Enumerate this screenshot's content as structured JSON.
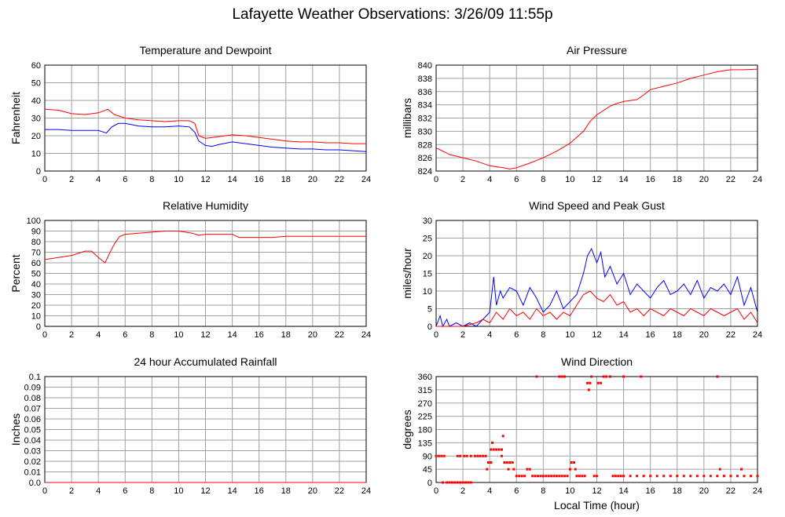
{
  "title": "Lafayette Weather Observations: 3/26/09 11:55p",
  "xlabel": "Local Time (hour)",
  "colors": {
    "red": "#ff0000",
    "blue": "#0000ff",
    "grid": "#a0a0a0"
  },
  "chart_data": [
    {
      "id": "temp",
      "type": "line",
      "title": "Temperature and Dewpoint",
      "xlabel": "",
      "ylabel": "Fahrenheit",
      "xlim": [
        0,
        24
      ],
      "ylim": [
        0,
        60
      ],
      "xticks": [
        0,
        2,
        4,
        6,
        8,
        10,
        12,
        14,
        16,
        18,
        20,
        22,
        24
      ],
      "yticks": [
        0,
        10,
        20,
        30,
        40,
        50,
        60
      ],
      "series": [
        {
          "color": "#ff0000",
          "x": [
            0,
            1,
            2,
            3,
            4,
            4.7,
            5.2,
            6,
            7,
            8,
            9,
            10,
            10.8,
            11.2,
            11.5,
            12,
            13,
            14,
            15,
            16,
            17,
            18,
            19,
            20,
            21,
            22,
            23,
            24
          ],
          "y": [
            35,
            34.5,
            32.5,
            32,
            33,
            35,
            32,
            30,
            29,
            28.5,
            28,
            28.5,
            28.5,
            27,
            20,
            18.5,
            19.5,
            20.5,
            20,
            19,
            18,
            17,
            16.5,
            16.5,
            16,
            16,
            15.5,
            15.5
          ]
        },
        {
          "color": "#0000ff",
          "x": [
            0,
            1,
            2,
            3,
            4,
            4.6,
            5,
            5.5,
            6,
            7,
            8,
            9,
            10,
            10.8,
            11.2,
            11.5,
            12,
            12.5,
            13,
            14,
            15,
            16,
            17,
            18,
            19,
            20,
            21,
            22,
            23,
            24
          ],
          "y": [
            23.5,
            23.5,
            23,
            23,
            23,
            21.5,
            25,
            27,
            27,
            25.5,
            25,
            25,
            25.5,
            25,
            22,
            17,
            14.5,
            14,
            15,
            16.5,
            15.5,
            14.5,
            13.5,
            13,
            12.5,
            12.5,
            12,
            12,
            11.5,
            11
          ]
        }
      ]
    },
    {
      "id": "press",
      "type": "line",
      "title": "Air Pressure",
      "xlabel": "",
      "ylabel": "millibars",
      "xlim": [
        0,
        24
      ],
      "ylim": [
        824,
        840
      ],
      "xticks": [
        0,
        2,
        4,
        6,
        8,
        10,
        12,
        14,
        16,
        18,
        20,
        22,
        24
      ],
      "yticks": [
        824,
        826,
        828,
        830,
        832,
        834,
        836,
        838,
        840
      ],
      "series": [
        {
          "color": "#ff0000",
          "x": [
            0,
            1,
            2,
            3,
            4,
            5,
            5.5,
            6,
            7,
            8,
            9,
            10,
            11,
            11.5,
            12,
            13,
            13.5,
            14,
            15,
            15.5,
            16,
            17,
            18,
            19,
            20,
            21,
            22,
            23,
            24
          ],
          "y": [
            827.5,
            826.5,
            826,
            825.5,
            824.8,
            824.5,
            824.3,
            824.5,
            825.2,
            826,
            827,
            828.2,
            830,
            831.5,
            832.5,
            833.8,
            834.2,
            834.5,
            834.8,
            835.5,
            836.3,
            836.8,
            837.3,
            838,
            838.5,
            839,
            839.3,
            839.3,
            839.4
          ]
        }
      ]
    },
    {
      "id": "rh",
      "type": "line",
      "title": "Relative Humidity",
      "xlabel": "",
      "ylabel": "Percent",
      "xlim": [
        0,
        24
      ],
      "ylim": [
        0,
        100
      ],
      "xticks": [
        0,
        2,
        4,
        6,
        8,
        10,
        12,
        14,
        16,
        18,
        20,
        22,
        24
      ],
      "yticks": [
        0,
        10,
        20,
        30,
        40,
        50,
        60,
        70,
        80,
        90,
        100
      ],
      "series": [
        {
          "color": "#ff0000",
          "x": [
            0,
            1,
            2,
            3,
            3.5,
            4,
            4.5,
            4.8,
            5.2,
            5.6,
            6,
            7,
            8,
            9,
            10,
            11,
            11.5,
            12,
            13,
            14,
            14.5,
            15,
            16,
            17,
            18,
            19,
            20,
            21,
            22,
            23,
            24
          ],
          "y": [
            63,
            65,
            67,
            71,
            71,
            65,
            60,
            68,
            78,
            85,
            87,
            88,
            89,
            90,
            90,
            88,
            86,
            87,
            87,
            87,
            84,
            84,
            84,
            84,
            85,
            85,
            85,
            85,
            85,
            85,
            85
          ]
        }
      ]
    },
    {
      "id": "wind",
      "type": "line",
      "title": "Wind Speed and Peak Gust",
      "xlabel": "",
      "ylabel": "miles/hour",
      "xlim": [
        0,
        24
      ],
      "ylim": [
        0,
        30
      ],
      "xticks": [
        0,
        2,
        4,
        6,
        8,
        10,
        12,
        14,
        16,
        18,
        20,
        22,
        24
      ],
      "yticks": [
        0,
        5,
        10,
        15,
        20,
        25,
        30
      ],
      "series": [
        {
          "color": "#0000ff",
          "x": [
            0,
            0.3,
            0.5,
            0.8,
            1,
            1.5,
            2,
            2.5,
            3,
            3.5,
            4,
            4.3,
            4.5,
            4.8,
            5,
            5.5,
            6,
            6.5,
            7,
            7.5,
            8,
            8.5,
            9,
            9.5,
            10,
            10.5,
            11,
            11.3,
            11.6,
            12,
            12.3,
            12.6,
            13,
            13.5,
            14,
            14.5,
            15,
            15.5,
            16,
            16.5,
            17,
            17.5,
            18,
            18.5,
            19,
            19.5,
            20,
            20.5,
            21,
            21.5,
            22,
            22.5,
            23,
            23.5,
            24
          ],
          "y": [
            0,
            3,
            0,
            2,
            0,
            1,
            0,
            1,
            0,
            2,
            4,
            14,
            6,
            10,
            8,
            11,
            10,
            6,
            11,
            8,
            4,
            6,
            10,
            5,
            7,
            9,
            15,
            20,
            22,
            18,
            21,
            14,
            17,
            12,
            15,
            9,
            12,
            10,
            8,
            11,
            13,
            9,
            10,
            12,
            9,
            13,
            8,
            11,
            10,
            12,
            9,
            14,
            6,
            11,
            4
          ]
        },
        {
          "color": "#ff0000",
          "x": [
            0,
            2,
            3,
            3.5,
            4,
            4.5,
            5,
            5.5,
            6,
            6.5,
            7,
            7.5,
            8,
            8.5,
            9,
            9.5,
            10,
            10.5,
            11,
            11.5,
            12,
            12.5,
            13,
            13.5,
            14,
            14.5,
            15,
            15.5,
            16,
            16.5,
            17,
            17.5,
            18,
            18.5,
            19,
            19.5,
            20,
            20.5,
            21,
            21.5,
            22,
            22.5,
            23,
            23.5,
            24
          ],
          "y": [
            0,
            0,
            1,
            2,
            1,
            4,
            2,
            5,
            3,
            4,
            2,
            5,
            3,
            4,
            2,
            4,
            3,
            6,
            9,
            10,
            8,
            7,
            9,
            6,
            7,
            4,
            5,
            3,
            5,
            4,
            3,
            5,
            4,
            3,
            5,
            4,
            3,
            5,
            4,
            3,
            4,
            5,
            2,
            4,
            1
          ]
        }
      ]
    },
    {
      "id": "rain",
      "type": "line",
      "title": "24 hour Accumulated Rainfall",
      "xlabel": "",
      "ylabel": "Inches",
      "xlim": [
        0,
        24
      ],
      "ylim": [
        0,
        0.1
      ],
      "xticks": [
        0,
        2,
        4,
        6,
        8,
        10,
        12,
        14,
        16,
        18,
        20,
        22,
        24
      ],
      "yticks": [
        "0.0",
        "0.01",
        "0.02",
        "0.03",
        "0.04",
        "0.05",
        "0.06",
        "0.07",
        "0.08",
        "0.09",
        "0.1"
      ],
      "series": [
        {
          "color": "#ff0000",
          "x": [
            0,
            24
          ],
          "y": [
            0,
            0
          ]
        }
      ]
    },
    {
      "id": "dir",
      "type": "scatter",
      "title": "Wind Direction",
      "xlabel": "Local Time (hour)",
      "ylabel": "degrees",
      "xlim": [
        0,
        24
      ],
      "ylim": [
        0,
        360
      ],
      "xticks": [
        0,
        2,
        4,
        6,
        8,
        10,
        12,
        14,
        16,
        18,
        20,
        22,
        24
      ],
      "yticks": [
        0,
        45,
        90,
        135,
        180,
        225,
        270,
        315,
        360
      ],
      "series": [
        {
          "color": "#ff0000",
          "points": [
            [
              0,
              90
            ],
            [
              0.2,
              90
            ],
            [
              0.4,
              90
            ],
            [
              0.6,
              90
            ],
            [
              0.5,
              0
            ],
            [
              0.8,
              0
            ],
            [
              1,
              0
            ],
            [
              1.2,
              0
            ],
            [
              1.4,
              0
            ],
            [
              1.6,
              0
            ],
            [
              1.8,
              0
            ],
            [
              2,
              0
            ],
            [
              2.2,
              0
            ],
            [
              2.4,
              0
            ],
            [
              2.6,
              0
            ],
            [
              1.6,
              90
            ],
            [
              1.8,
              90
            ],
            [
              2.1,
              90
            ],
            [
              2.3,
              90
            ],
            [
              2.6,
              90
            ],
            [
              2.9,
              90
            ],
            [
              3.1,
              90
            ],
            [
              3.3,
              90
            ],
            [
              3.5,
              90
            ],
            [
              3.7,
              90
            ],
            [
              3.9,
              68
            ],
            [
              4.1,
              68
            ],
            [
              3.8,
              45
            ],
            [
              4.1,
              112
            ],
            [
              4.3,
              112
            ],
            [
              4.5,
              112
            ],
            [
              4.7,
              112
            ],
            [
              4.9,
              112
            ],
            [
              4.2,
              135
            ],
            [
              5,
              158
            ],
            [
              4.9,
              90
            ],
            [
              5.1,
              68
            ],
            [
              5.3,
              68
            ],
            [
              5.5,
              68
            ],
            [
              5.7,
              68
            ],
            [
              5.4,
              45
            ],
            [
              5.8,
              45
            ],
            [
              6,
              22
            ],
            [
              6.2,
              22
            ],
            [
              6.4,
              22
            ],
            [
              6.6,
              22
            ],
            [
              6.8,
              45
            ],
            [
              7,
              45
            ],
            [
              7.2,
              22
            ],
            [
              7.4,
              22
            ],
            [
              7.6,
              22
            ],
            [
              7.5,
              360
            ],
            [
              7.8,
              22
            ],
            [
              8,
              22
            ],
            [
              8.2,
              22
            ],
            [
              8.4,
              22
            ],
            [
              8.6,
              22
            ],
            [
              8.8,
              22
            ],
            [
              9,
              22
            ],
            [
              9.2,
              22
            ],
            [
              9.4,
              22
            ],
            [
              9.6,
              22
            ],
            [
              9.8,
              22
            ],
            [
              9.2,
              360
            ],
            [
              9.4,
              360
            ],
            [
              9.6,
              360
            ],
            [
              10,
              45
            ],
            [
              10.1,
              68
            ],
            [
              10.3,
              68
            ],
            [
              10.4,
              45
            ],
            [
              10.5,
              22
            ],
            [
              10.7,
              22
            ],
            [
              10.9,
              22
            ],
            [
              11.1,
              22
            ],
            [
              11.3,
              338
            ],
            [
              11.5,
              338
            ],
            [
              11.4,
              315
            ],
            [
              11.6,
              360
            ],
            [
              11.8,
              22
            ],
            [
              12,
              22
            ],
            [
              12.1,
              338
            ],
            [
              12.3,
              338
            ],
            [
              12.5,
              360
            ],
            [
              12.7,
              360
            ],
            [
              13,
              360
            ],
            [
              13.2,
              22
            ],
            [
              13.4,
              22
            ],
            [
              13.6,
              22
            ],
            [
              13.8,
              22
            ],
            [
              14,
              22
            ],
            [
              14.5,
              22
            ],
            [
              15,
              22
            ],
            [
              15.5,
              22
            ],
            [
              16,
              22
            ],
            [
              16.5,
              22
            ],
            [
              17,
              22
            ],
            [
              17.5,
              22
            ],
            [
              18,
              22
            ],
            [
              18.5,
              22
            ],
            [
              19,
              22
            ],
            [
              19.5,
              22
            ],
            [
              20,
              22
            ],
            [
              20.5,
              22
            ],
            [
              21,
              22
            ],
            [
              21,
              360
            ],
            [
              21.2,
              45
            ],
            [
              21.5,
              22
            ],
            [
              22,
              22
            ],
            [
              22.5,
              22
            ],
            [
              22.8,
              45
            ],
            [
              23,
              22
            ],
            [
              23.5,
              22
            ],
            [
              24,
              22
            ],
            [
              14,
              360
            ],
            [
              15.3,
              360
            ]
          ]
        }
      ]
    }
  ]
}
